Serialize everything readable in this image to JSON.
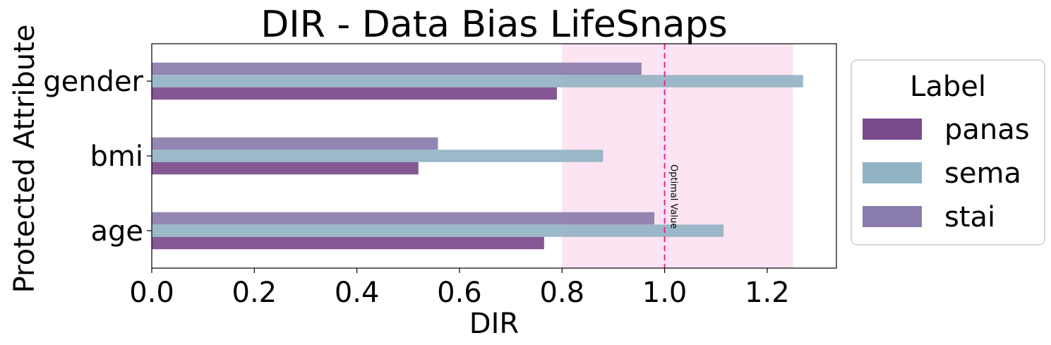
{
  "chart_data": {
    "type": "bar",
    "orientation": "horizontal",
    "title": "DIR - Data Bias LifeSnaps",
    "xlabel": "DIR",
    "ylabel": "Protected Attribute",
    "categories": [
      "gender",
      "bmi",
      "age"
    ],
    "series": [
      {
        "name": "panas",
        "color": "#7b4a8b",
        "values": [
          0.79,
          0.52,
          0.765
        ]
      },
      {
        "name": "sema",
        "color": "#92b3c4",
        "values": [
          1.27,
          0.88,
          1.115
        ]
      },
      {
        "name": "stai",
        "color": "#8a7cad",
        "values": [
          0.955,
          0.558,
          0.98
        ]
      }
    ],
    "xlim": [
      0,
      1.335
    ],
    "xticks": [
      "0.0",
      "0.2",
      "0.4",
      "0.6",
      "0.8",
      "1.0",
      "1.2"
    ],
    "fair_band": {
      "from": 0.8,
      "to": 1.25,
      "color": "#fde4f2"
    },
    "reference_line": {
      "value": 1.0,
      "label": "Optimal Value",
      "color": "#e8228f"
    },
    "legend": {
      "title": "Label",
      "position": "outside-right"
    },
    "grid": false
  }
}
